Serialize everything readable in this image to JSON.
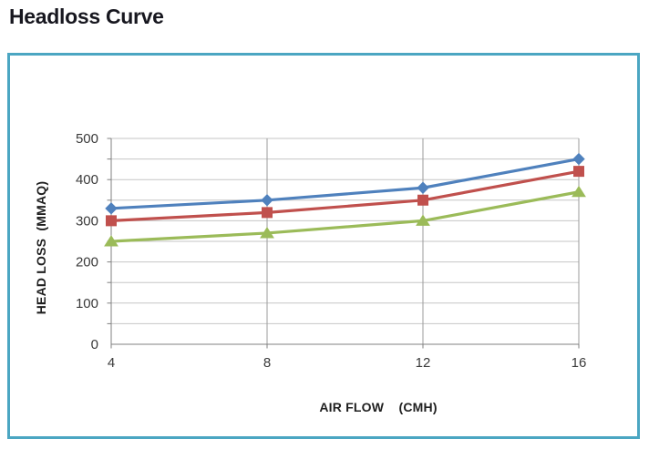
{
  "page_title": "Headloss Curve",
  "frame": {
    "border_color": "#4BA6C2"
  },
  "chart_data": {
    "type": "line",
    "title": "Headloss Curve",
    "xlabel": "AIR FLOW    (CMH)",
    "ylabel": "HEAD LOSS  (MMAQ)",
    "x": [
      4,
      8,
      12,
      16
    ],
    "x_tick_labels": [
      "4",
      "8",
      "12",
      "16"
    ],
    "y_tick_labels": [
      "0",
      "100",
      "200",
      "300",
      "400",
      "500"
    ],
    "xlim": [
      4,
      16
    ],
    "ylim": [
      0,
      500
    ],
    "y_major_step": 100,
    "y_minor_step": 50,
    "grid": true,
    "legend": "none",
    "series": [
      {
        "name": "blue-series",
        "marker": "diamond",
        "color": "#4F81BD",
        "values": [
          330,
          350,
          380,
          450
        ]
      },
      {
        "name": "red-series",
        "marker": "square",
        "color": "#C0504D",
        "values": [
          300,
          320,
          350,
          420
        ]
      },
      {
        "name": "green-series",
        "marker": "triangle",
        "color": "#9BBB59",
        "values": [
          250,
          270,
          300,
          370
        ]
      }
    ],
    "colors": {
      "axis_line": "#808080",
      "horizontal_gridline": "#c6c6c6",
      "vertical_gridline": "#9b9b9b",
      "tick_label": "#3a3a3a"
    }
  }
}
